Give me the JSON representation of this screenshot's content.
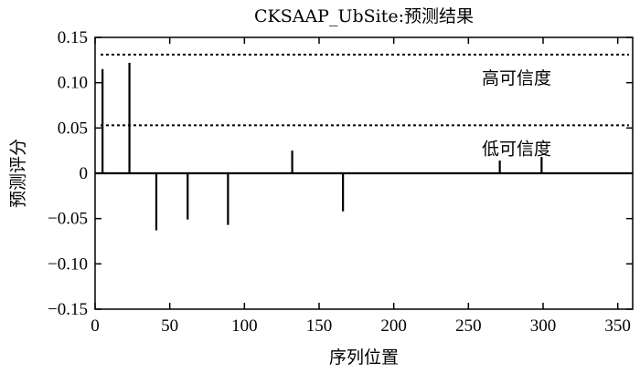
{
  "chart_data": {
    "type": "bar",
    "title": "CKSAAP_UbSite:预测结果",
    "xlabel": "序列位置",
    "ylabel": "预测评分",
    "xlim": [
      0,
      360
    ],
    "ylim": [
      -0.15,
      0.15
    ],
    "xticks": [
      "0",
      "50",
      "100",
      "150",
      "200",
      "250",
      "300",
      "350"
    ],
    "xtick_values": [
      0,
      50,
      100,
      150,
      200,
      250,
      300,
      350
    ],
    "yticks": [
      "0.15",
      "0.10",
      "0.05",
      "0",
      "−0.05",
      "−0.10",
      "−0.15"
    ],
    "ytick_values": [
      0.15,
      0.1,
      0.05,
      0,
      -0.05,
      -0.1,
      -0.15
    ],
    "grid": false,
    "thresholds": [
      {
        "label": "高可信度",
        "value": 0.131
      },
      {
        "label": "低可信度",
        "value": 0.053
      }
    ],
    "x": [
      5,
      23,
      41,
      62,
      89,
      132,
      166,
      271,
      299
    ],
    "values": [
      0.115,
      0.122,
      -0.063,
      -0.051,
      -0.057,
      0.025,
      -0.042,
      0.014,
      0.018
    ]
  }
}
